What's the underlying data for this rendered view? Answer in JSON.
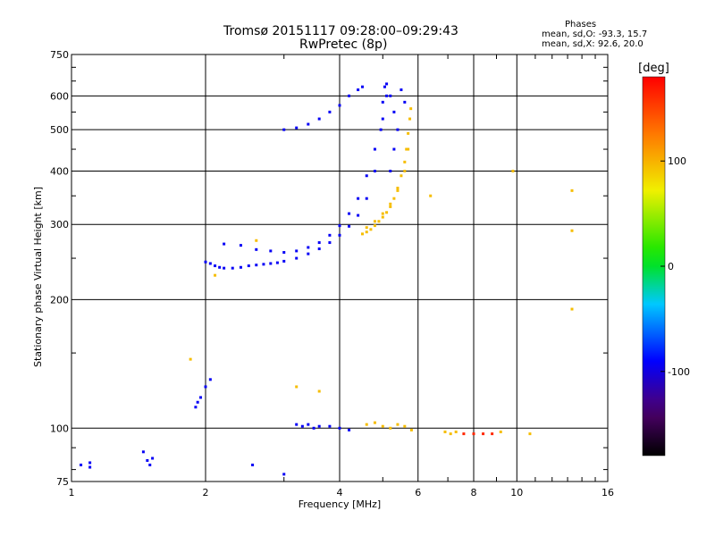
{
  "title": "Tromsø 20151117 09:28:00–09:29:43",
  "subtitle": "RwPretec (8p)",
  "stats": {
    "heading": "Phases",
    "line_o": "mean, sd,O: -93.3, 15.7",
    "line_x": "mean, sd,X: 92.6, 20.0"
  },
  "chart_data": {
    "type": "scatter",
    "title": "Tromsø 20151117 09:28:00–09:29:43",
    "subtitle": "RwPretec (8p)",
    "xlabel": "Frequency [MHz]",
    "ylabel": "Stationary phase Virtual Height [km]",
    "x_scale": "log",
    "y_scale": "log",
    "xlim": [
      1,
      16
    ],
    "ylim": [
      75,
      750
    ],
    "x_ticks": [
      1,
      2,
      4,
      6,
      8,
      10,
      16
    ],
    "x_tick_labels": [
      "1",
      "2",
      "4",
      "6",
      "8",
      "10",
      "16"
    ],
    "y_ticks": [
      75,
      100,
      200,
      300,
      400,
      500,
      600,
      750
    ],
    "y_tick_labels": [
      "75",
      "100",
      "200",
      "300",
      "400",
      "500",
      "600",
      "750"
    ],
    "grid": true,
    "colorbar": {
      "label": "[deg]",
      "range": [
        -180,
        180
      ],
      "ticks": [
        100,
        0,
        -100
      ],
      "tick_labels": [
        "100",
        "0",
        "-100"
      ]
    },
    "series": [
      {
        "name": "O",
        "points": [
          [
            2.0,
            245
          ],
          [
            2.05,
            243
          ],
          [
            2.1,
            240
          ],
          [
            2.15,
            238
          ],
          [
            2.2,
            237
          ],
          [
            2.3,
            237
          ],
          [
            2.4,
            238
          ],
          [
            2.5,
            240
          ],
          [
            2.6,
            241
          ],
          [
            2.7,
            242
          ],
          [
            2.8,
            243
          ],
          [
            2.9,
            244
          ],
          [
            3.0,
            246
          ],
          [
            3.2,
            250
          ],
          [
            3.4,
            256
          ],
          [
            3.6,
            263
          ],
          [
            3.8,
            272
          ],
          [
            4.0,
            283
          ],
          [
            4.2,
            297
          ],
          [
            4.4,
            315
          ],
          [
            4.6,
            345
          ],
          [
            4.8,
            400
          ],
          [
            4.95,
            500
          ],
          [
            5.0,
            580
          ],
          [
            5.05,
            630
          ],
          [
            2.2,
            270
          ],
          [
            2.4,
            268
          ],
          [
            2.6,
            262
          ],
          [
            2.8,
            260
          ],
          [
            3.0,
            258
          ],
          [
            3.2,
            260
          ],
          [
            3.4,
            265
          ],
          [
            3.6,
            272
          ],
          [
            3.8,
            283
          ],
          [
            4.0,
            298
          ],
          [
            4.2,
            318
          ],
          [
            4.4,
            345
          ],
          [
            4.6,
            390
          ],
          [
            4.8,
            450
          ],
          [
            5.0,
            530
          ],
          [
            5.1,
            600
          ],
          [
            3.0,
            500
          ],
          [
            3.2,
            505
          ],
          [
            3.4,
            515
          ],
          [
            3.6,
            530
          ],
          [
            3.8,
            550
          ],
          [
            4.0,
            570
          ],
          [
            4.2,
            600
          ],
          [
            4.4,
            620
          ],
          [
            4.5,
            630
          ],
          [
            5.1,
            640
          ],
          [
            5.2,
            600
          ],
          [
            5.3,
            550
          ],
          [
            5.4,
            500
          ],
          [
            5.5,
            620
          ],
          [
            5.6,
            580
          ],
          [
            5.3,
            450
          ],
          [
            5.2,
            400
          ],
          [
            1.05,
            82
          ],
          [
            1.1,
            83
          ],
          [
            1.1,
            81
          ],
          [
            1.45,
            88
          ],
          [
            1.48,
            84
          ],
          [
            1.5,
            82
          ],
          [
            1.52,
            85
          ],
          [
            1.9,
            112
          ],
          [
            1.92,
            115
          ],
          [
            1.95,
            118
          ],
          [
            2.0,
            125
          ],
          [
            2.05,
            130
          ],
          [
            2.55,
            82
          ],
          [
            3.0,
            78
          ],
          [
            3.2,
            102
          ],
          [
            3.3,
            101
          ],
          [
            3.4,
            102
          ],
          [
            3.5,
            100
          ],
          [
            3.6,
            101
          ],
          [
            3.8,
            101
          ],
          [
            4.0,
            100
          ],
          [
            4.2,
            99
          ]
        ]
      },
      {
        "name": "X",
        "points": [
          [
            4.5,
            285
          ],
          [
            4.6,
            288
          ],
          [
            4.7,
            292
          ],
          [
            4.8,
            298
          ],
          [
            4.9,
            305
          ],
          [
            5.0,
            312
          ],
          [
            5.1,
            320
          ],
          [
            5.2,
            330
          ],
          [
            5.3,
            345
          ],
          [
            5.4,
            365
          ],
          [
            5.5,
            390
          ],
          [
            5.6,
            420
          ],
          [
            5.65,
            450
          ],
          [
            5.7,
            490
          ],
          [
            5.75,
            530
          ],
          [
            5.78,
            560
          ],
          [
            4.6,
            295
          ],
          [
            4.8,
            305
          ],
          [
            5.0,
            318
          ],
          [
            5.2,
            335
          ],
          [
            5.4,
            360
          ],
          [
            5.6,
            400
          ],
          [
            5.7,
            450
          ],
          [
            4.6,
            102
          ],
          [
            4.8,
            103
          ],
          [
            5.0,
            101
          ],
          [
            5.2,
            100
          ],
          [
            5.4,
            102
          ],
          [
            5.6,
            101
          ],
          [
            5.8,
            99
          ],
          [
            6.9,
            98
          ],
          [
            7.1,
            97
          ],
          [
            7.3,
            98
          ],
          [
            7.6,
            97
          ],
          [
            8.0,
            97
          ],
          [
            8.4,
            97
          ],
          [
            8.8,
            97
          ],
          [
            9.2,
            98
          ],
          [
            10.7,
            97
          ],
          [
            1.85,
            145
          ],
          [
            2.1,
            228
          ],
          [
            2.6,
            275
          ],
          [
            3.2,
            125
          ],
          [
            3.6,
            122
          ],
          [
            6.4,
            350
          ],
          [
            9.8,
            400
          ],
          [
            13.3,
            360
          ],
          [
            13.3,
            190
          ],
          [
            13.3,
            290
          ]
        ]
      }
    ]
  }
}
